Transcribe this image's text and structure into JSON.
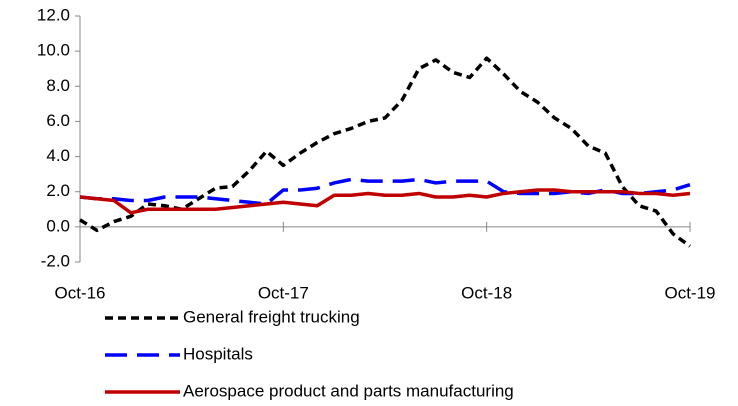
{
  "chart_data": {
    "type": "line",
    "categories": [
      "Oct-16",
      null,
      null,
      null,
      null,
      null,
      null,
      null,
      null,
      null,
      null,
      null,
      "Oct-17",
      null,
      null,
      null,
      null,
      null,
      null,
      null,
      null,
      null,
      null,
      null,
      "Oct-18",
      null,
      null,
      null,
      null,
      null,
      null,
      null,
      null,
      null,
      null,
      null,
      "Oct-19"
    ],
    "series": [
      {
        "name": "General freight trucking",
        "color": "#000000",
        "line_style": "dotted",
        "values": [
          0.4,
          -0.2,
          0.3,
          0.6,
          1.3,
          1.2,
          1.0,
          1.6,
          2.2,
          2.3,
          3.2,
          4.3,
          3.5,
          4.2,
          4.8,
          5.3,
          5.6,
          6.0,
          6.2,
          7.2,
          9.0,
          9.5,
          8.8,
          8.5,
          9.6,
          8.7,
          7.7,
          7.1,
          6.2,
          5.6,
          4.6,
          4.2,
          2.3,
          1.2,
          0.9,
          -0.4,
          -1.1
        ]
      },
      {
        "name": "Hospitals",
        "color": "#0000ff",
        "line_style": "dashed",
        "values": [
          1.7,
          1.6,
          1.6,
          1.5,
          1.5,
          1.7,
          1.7,
          1.7,
          1.6,
          1.5,
          1.4,
          1.3,
          2.1,
          2.1,
          2.2,
          2.5,
          2.7,
          2.6,
          2.6,
          2.6,
          2.7,
          2.5,
          2.6,
          2.6,
          2.6,
          2.0,
          1.9,
          1.9,
          1.9,
          2.0,
          1.9,
          2.1,
          1.9,
          1.9,
          2.0,
          2.1,
          2.4
        ]
      },
      {
        "name": "Aerospace product and parts manufacturing",
        "color": "#c00000",
        "line_style": "solid",
        "values": [
          1.7,
          1.6,
          1.5,
          0.8,
          1.0,
          1.0,
          1.0,
          1.0,
          1.0,
          1.1,
          1.2,
          1.3,
          1.4,
          1.3,
          1.2,
          1.8,
          1.8,
          1.9,
          1.8,
          1.8,
          1.9,
          1.7,
          1.7,
          1.8,
          1.7,
          1.9,
          2.0,
          2.1,
          2.1,
          2.0,
          2.0,
          2.0,
          2.0,
          1.9,
          1.9,
          1.8,
          1.9
        ]
      }
    ],
    "ylim": [
      -2,
      12
    ],
    "yticks": [
      {
        "value": -2,
        "label": "-2.0"
      },
      {
        "value": 0,
        "label": "0.0"
      },
      {
        "value": 2,
        "label": "2.0"
      },
      {
        "value": 4,
        "label": "4.0"
      },
      {
        "value": 6,
        "label": "6.0"
      },
      {
        "value": 8,
        "label": "8.0"
      },
      {
        "value": 10,
        "label": "10.0"
      },
      {
        "value": 12,
        "label": "12.0"
      }
    ],
    "grid": false,
    "legend": "bottom"
  }
}
